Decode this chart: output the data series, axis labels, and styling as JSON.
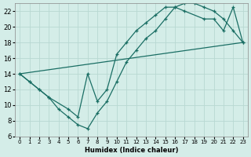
{
  "xlabel": "Humidex (Indice chaleur)",
  "bg_color": "#d4ede8",
  "grid_color": "#b8d8d2",
  "line_color": "#1a6e64",
  "xlim": [
    -0.5,
    23.5
  ],
  "ylim": [
    6,
    23
  ],
  "xticks": [
    0,
    1,
    2,
    3,
    4,
    5,
    6,
    7,
    8,
    9,
    10,
    11,
    12,
    13,
    14,
    15,
    16,
    17,
    18,
    19,
    20,
    21,
    22,
    23
  ],
  "yticks": [
    6,
    8,
    10,
    12,
    14,
    16,
    18,
    20,
    22
  ],
  "line1_x": [
    0,
    1,
    2,
    3,
    4,
    5,
    6,
    7,
    8,
    9,
    10,
    11,
    12,
    13,
    14,
    15,
    16,
    17,
    18,
    19,
    20,
    21,
    22,
    23
  ],
  "line1_y": [
    14,
    13,
    12,
    11,
    9.5,
    8.5,
    7.5,
    7.0,
    9.0,
    10.5,
    13.0,
    15.5,
    17.0,
    18.5,
    19.5,
    21.0,
    22.5,
    23.0,
    23.0,
    22.5,
    22.0,
    21.0,
    19.5,
    18.0
  ],
  "line2_x": [
    0,
    1,
    2,
    3,
    5,
    6,
    7,
    8,
    9,
    10,
    11,
    12,
    13,
    14,
    15,
    16,
    17,
    19,
    20,
    21,
    22,
    23
  ],
  "line2_y": [
    14,
    13,
    12,
    11,
    9.5,
    8.5,
    14.0,
    10.5,
    12.0,
    16.5,
    18.0,
    19.5,
    20.5,
    21.5,
    22.5,
    22.5,
    22.0,
    21.0,
    21.0,
    19.5,
    22.5,
    18.0
  ],
  "line3_x": [
    0,
    23
  ],
  "line3_y": [
    14,
    18.0
  ]
}
